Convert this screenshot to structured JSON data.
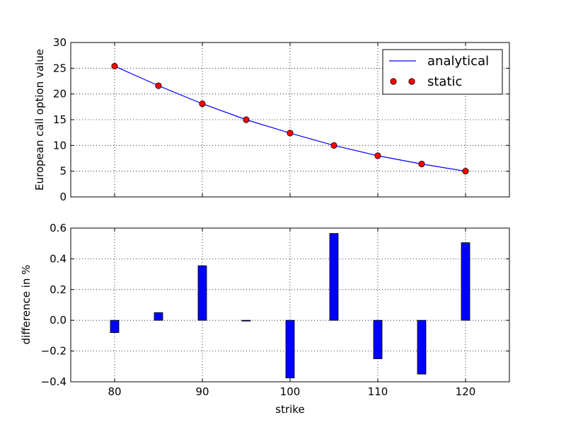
{
  "chart_data": [
    {
      "type": "line",
      "ylabel": "European call option value",
      "xlim": [
        75,
        125
      ],
      "ylim": [
        0,
        30
      ],
      "x_ticks": [
        80,
        90,
        100,
        110,
        120
      ],
      "y_ticks": [
        0,
        5,
        10,
        15,
        20,
        25,
        30
      ],
      "grid": true,
      "legend": "top-right",
      "x": [
        80,
        85,
        90,
        95,
        100,
        105,
        110,
        115,
        120
      ],
      "series": [
        {
          "name": "analytical",
          "style": "line",
          "color": "#0000ff",
          "values": [
            25.4,
            21.6,
            18.1,
            15.0,
            12.4,
            10.0,
            8.0,
            6.4,
            5.0
          ]
        },
        {
          "name": "static",
          "style": "markers",
          "color": "#ff0000",
          "values": [
            25.4,
            21.6,
            18.1,
            15.0,
            12.4,
            10.0,
            8.0,
            6.4,
            5.0
          ]
        }
      ]
    },
    {
      "type": "bar",
      "xlabel": "strike",
      "ylabel": "difference in %",
      "xlim": [
        75,
        125
      ],
      "ylim": [
        -0.4,
        0.6
      ],
      "x_ticks": [
        80,
        90,
        100,
        110,
        120
      ],
      "y_ticks": [
        -0.4,
        -0.2,
        0.0,
        0.2,
        0.4,
        0.6
      ],
      "y_tick_labels": [
        "−0.4",
        "−0.2",
        "0.0",
        "0.2",
        "0.4",
        "0.6"
      ],
      "grid": true,
      "color": "#0000ff",
      "x": [
        80,
        85,
        90,
        95,
        100,
        105,
        110,
        115,
        120
      ],
      "values": [
        -0.08,
        0.05,
        0.355,
        -0.005,
        -0.375,
        0.565,
        -0.25,
        -0.35,
        0.505
      ]
    }
  ]
}
